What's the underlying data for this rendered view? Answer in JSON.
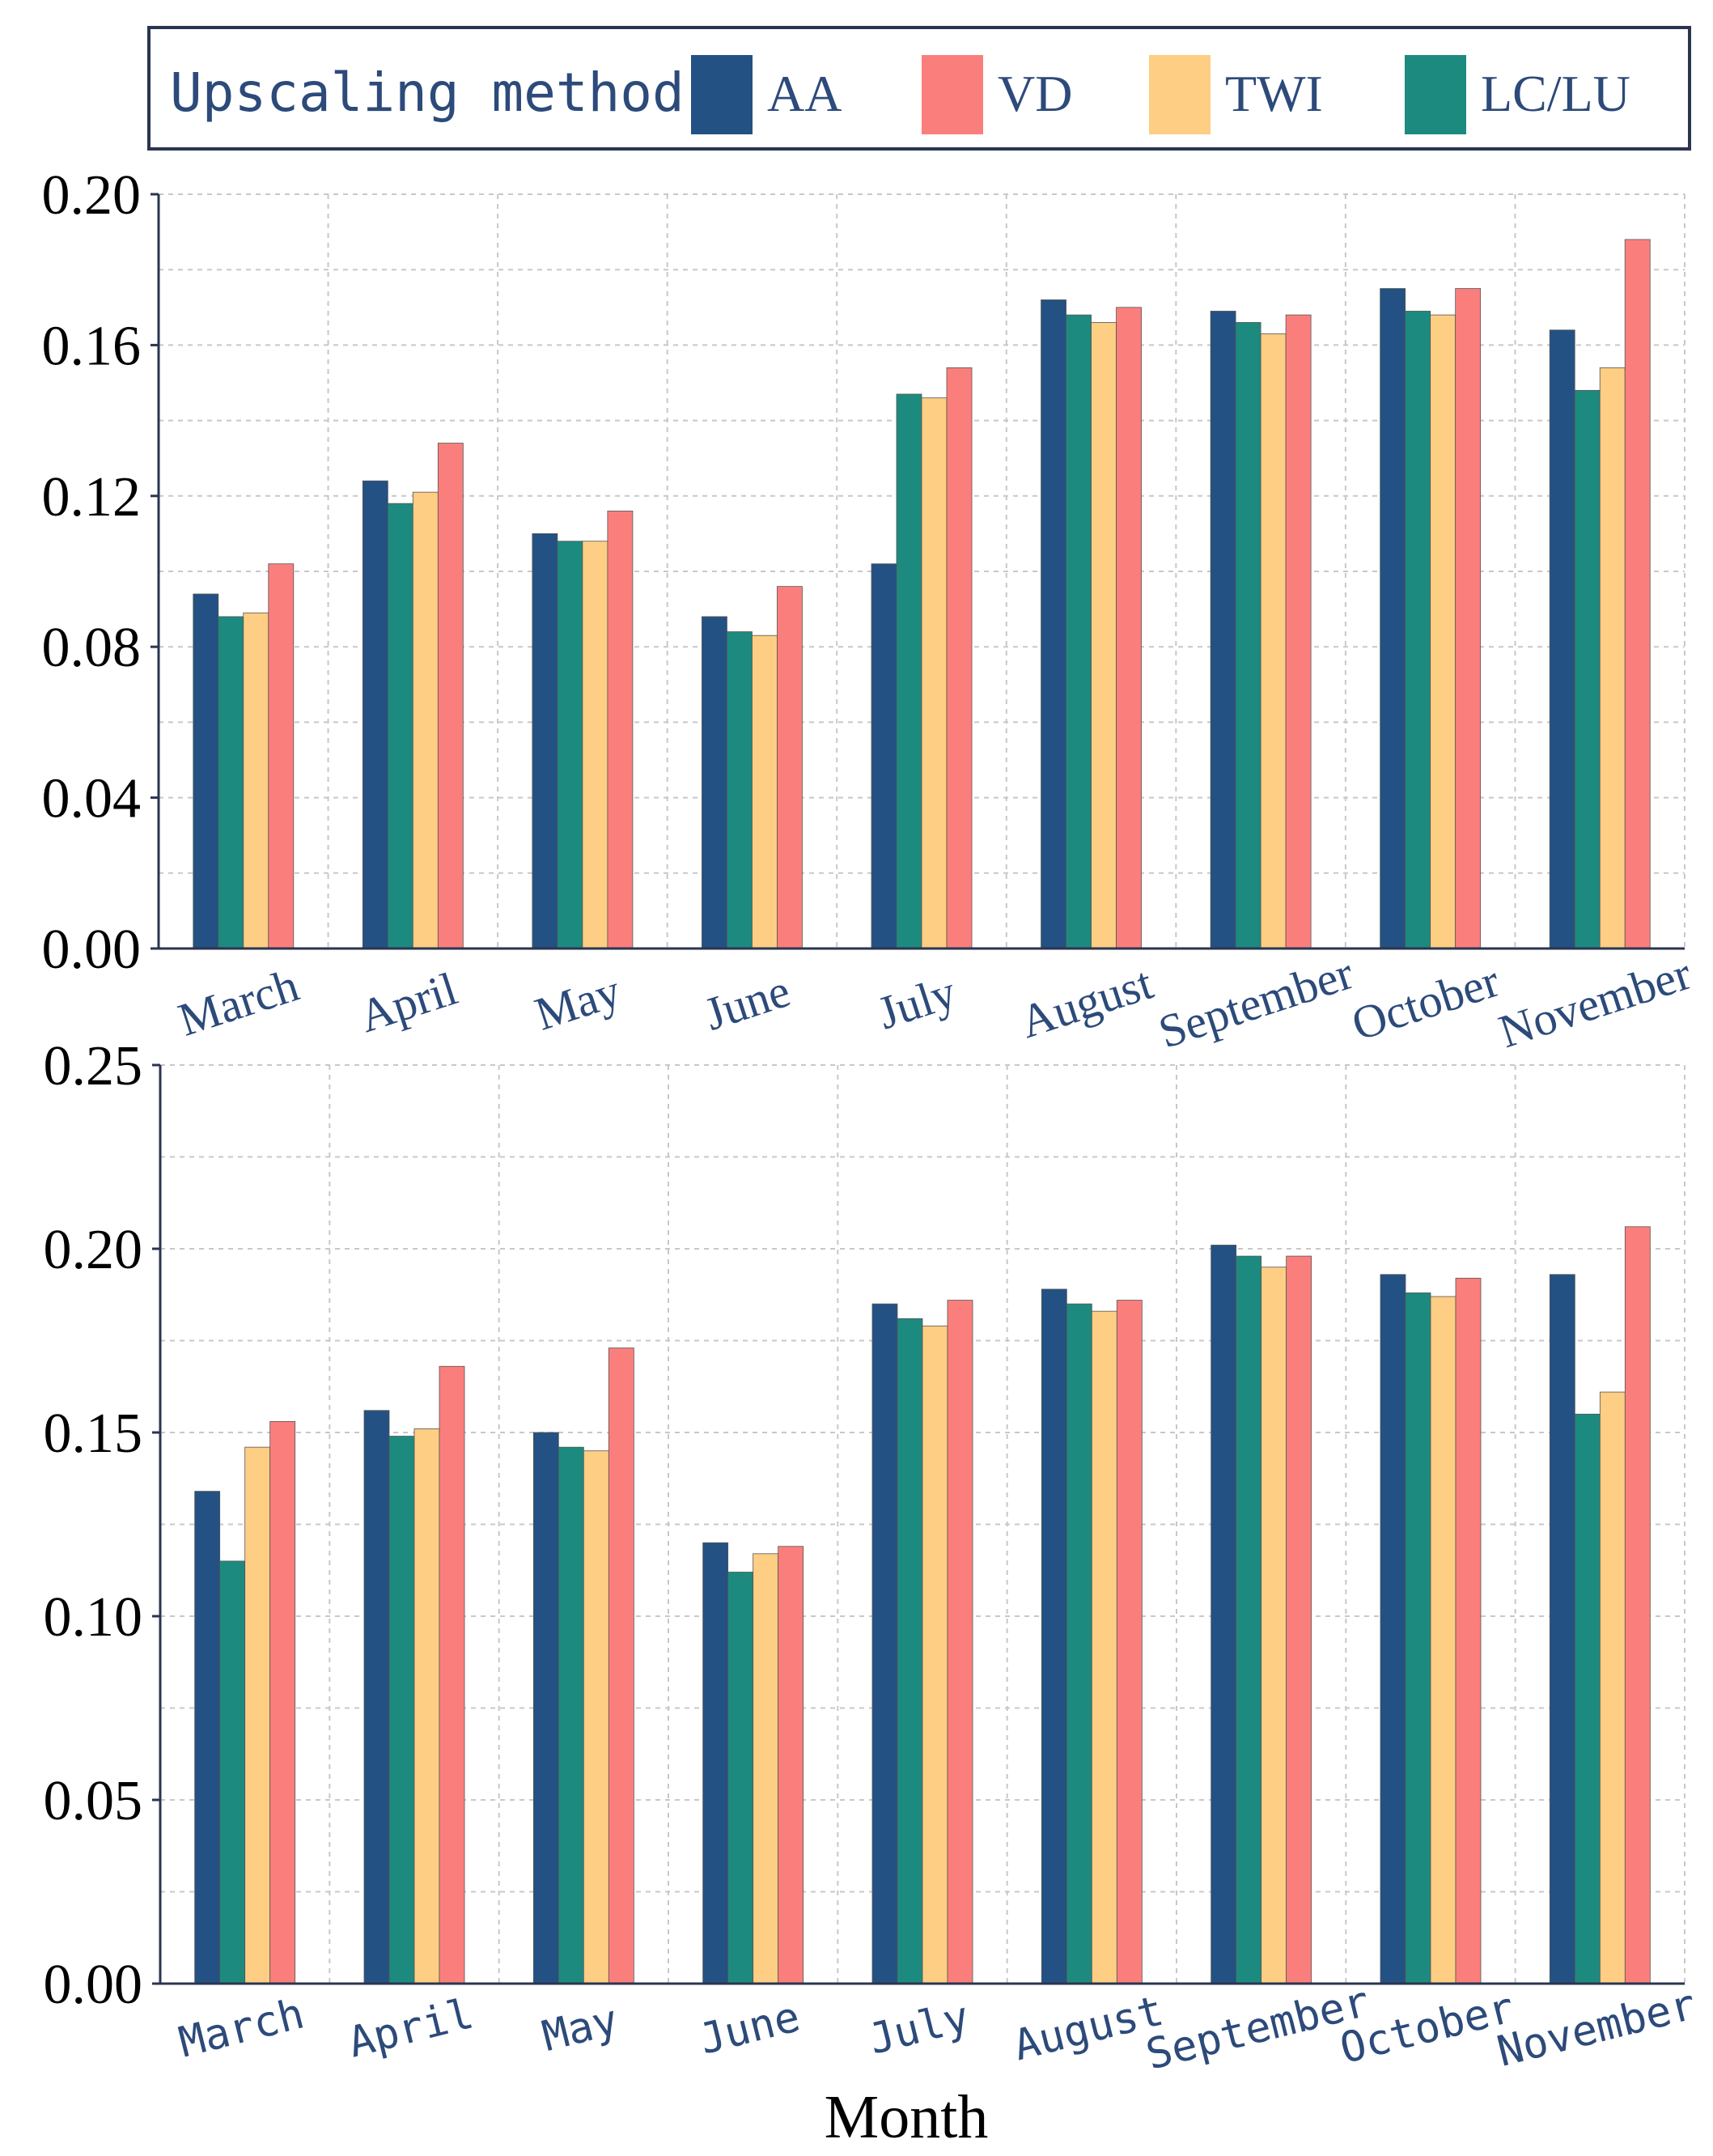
{
  "legend": {
    "title": "Upscaling method",
    "entries": [
      {
        "label": "AA",
        "color": "#235183"
      },
      {
        "label": "VD",
        "color": "#FA7F7C"
      },
      {
        "label": "TWI",
        "color": "#FDCE83"
      },
      {
        "label": "LC/LU",
        "color": "#1D8A7F"
      }
    ],
    "placement": "top"
  },
  "colors": {
    "axis": "#2a3550",
    "grid": "#c8c8c8",
    "tick_label_month": "#2c4a7a"
  },
  "chart_data": [
    {
      "type": "bar",
      "xlabel": "",
      "ylabel": "",
      "categories": [
        "March",
        "April",
        "May",
        "June",
        "July",
        "August",
        "September",
        "October",
        "November"
      ],
      "ylim": [
        0,
        0.2
      ],
      "yticks": [
        "0.00",
        "0.04",
        "0.08",
        "0.12",
        "0.16",
        "0.20"
      ],
      "grid": true,
      "series": [
        {
          "name": "AA",
          "values": [
            0.094,
            0.124,
            0.11,
            0.088,
            0.102,
            0.172,
            0.169,
            0.175,
            0.164
          ]
        },
        {
          "name": "LC/LU",
          "values": [
            0.088,
            0.118,
            0.108,
            0.084,
            0.147,
            0.168,
            0.166,
            0.169,
            0.148
          ]
        },
        {
          "name": "TWI",
          "values": [
            0.089,
            0.121,
            0.108,
            0.083,
            0.146,
            0.166,
            0.163,
            0.168,
            0.154
          ]
        },
        {
          "name": "VD",
          "values": [
            0.102,
            0.134,
            0.116,
            0.096,
            0.154,
            0.17,
            0.168,
            0.175,
            0.188
          ]
        }
      ]
    },
    {
      "type": "bar",
      "xlabel": "Month",
      "ylabel": "",
      "categories": [
        "March",
        "April",
        "May",
        "June",
        "July",
        "August",
        "September",
        "October",
        "November"
      ],
      "ylim": [
        0,
        0.25
      ],
      "yticks": [
        "0.00",
        "0.05",
        "0.10",
        "0.15",
        "0.20",
        "0.25"
      ],
      "grid": true,
      "series": [
        {
          "name": "AA",
          "values": [
            0.134,
            0.156,
            0.15,
            0.12,
            0.185,
            0.189,
            0.201,
            0.193,
            0.193
          ]
        },
        {
          "name": "LC/LU",
          "values": [
            0.115,
            0.149,
            0.146,
            0.112,
            0.181,
            0.185,
            0.198,
            0.188,
            0.155
          ]
        },
        {
          "name": "TWI",
          "values": [
            0.146,
            0.151,
            0.145,
            0.117,
            0.179,
            0.183,
            0.195,
            0.187,
            0.161
          ]
        },
        {
          "name": "VD",
          "values": [
            0.153,
            0.168,
            0.173,
            0.119,
            0.186,
            0.186,
            0.198,
            0.192,
            0.206
          ]
        }
      ]
    }
  ]
}
